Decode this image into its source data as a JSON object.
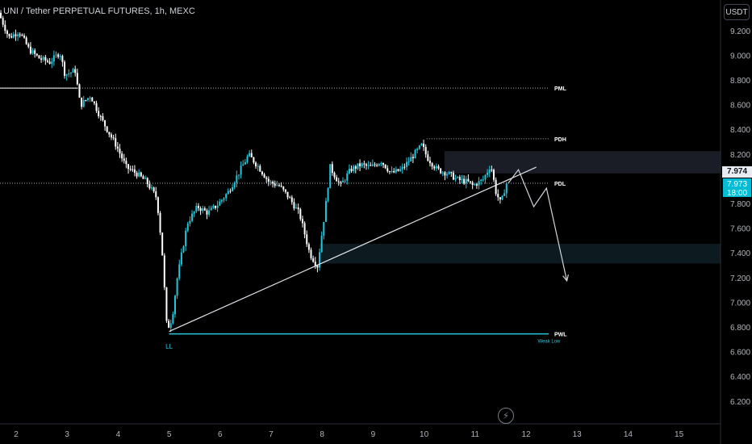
{
  "header": {
    "title": "UNI / Tether PERPETUAL FUTURES, 1h, MEXC",
    "currency_button": "USDT"
  },
  "price_tags": {
    "last": "7.974",
    "current": "7.973",
    "countdown": "18:00"
  },
  "colors": {
    "background": "#000000",
    "up_candle": "#26c6da",
    "down_candle": "#ffffff",
    "level_line": "#b2b5be",
    "pwl_line": "#26c6da",
    "accent": "#00bcd4"
  },
  "icons": {
    "replay": "lightning-icon"
  },
  "chart_data": {
    "type": "candlestick",
    "title": "UNI / Tether PERPETUAL FUTURES, 1h, MEXC",
    "xlabel": "",
    "ylabel": "",
    "x_ticks": [
      "2",
      "3",
      "4",
      "5",
      "6",
      "7",
      "8",
      "9",
      "10",
      "11",
      "12",
      "13",
      "14",
      "15"
    ],
    "y_ticks": [
      "9.200",
      "9.000",
      "8.800",
      "8.600",
      "8.400",
      "8.200",
      "8.000",
      "7.800",
      "7.600",
      "7.400",
      "7.200",
      "7.000",
      "6.800",
      "6.600",
      "6.400",
      "6.200"
    ],
    "y_range": [
      6.1,
      9.4
    ],
    "x_range": [
      1.7,
      15.75
    ],
    "grid": false,
    "price_path": [
      [
        1.7,
        9.35
      ],
      [
        1.9,
        9.15
      ],
      [
        2.1,
        9.2
      ],
      [
        2.3,
        9.05
      ],
      [
        2.5,
        8.98
      ],
      [
        2.7,
        8.95
      ],
      [
        2.9,
        9.03
      ],
      [
        3.0,
        8.85
      ],
      [
        3.2,
        8.88
      ],
      [
        3.3,
        8.6
      ],
      [
        3.5,
        8.68
      ],
      [
        3.7,
        8.5
      ],
      [
        3.9,
        8.35
      ],
      [
        4.0,
        8.28
      ],
      [
        4.2,
        8.1
      ],
      [
        4.4,
        8.05
      ],
      [
        4.6,
        7.98
      ],
      [
        4.8,
        7.85
      ],
      [
        4.9,
        7.45
      ],
      [
        5.0,
        6.78
      ],
      [
        5.1,
        6.88
      ],
      [
        5.2,
        7.2
      ],
      [
        5.4,
        7.65
      ],
      [
        5.6,
        7.78
      ],
      [
        5.8,
        7.73
      ],
      [
        6.0,
        7.8
      ],
      [
        6.2,
        7.9
      ],
      [
        6.4,
        8.05
      ],
      [
        6.6,
        8.2
      ],
      [
        6.8,
        8.1
      ],
      [
        7.0,
        7.98
      ],
      [
        7.2,
        7.95
      ],
      [
        7.4,
        7.85
      ],
      [
        7.6,
        7.72
      ],
      [
        7.8,
        7.4
      ],
      [
        7.95,
        7.3
      ],
      [
        8.1,
        7.75
      ],
      [
        8.2,
        8.1
      ],
      [
        8.4,
        7.95
      ],
      [
        8.6,
        8.08
      ],
      [
        8.8,
        8.12
      ],
      [
        9.0,
        8.1
      ],
      [
        9.2,
        8.15
      ],
      [
        9.4,
        8.05
      ],
      [
        9.6,
        8.08
      ],
      [
        9.8,
        8.18
      ],
      [
        10.0,
        8.28
      ],
      [
        10.1,
        8.18
      ],
      [
        10.3,
        8.08
      ],
      [
        10.5,
        8.05
      ],
      [
        10.7,
        8.0
      ],
      [
        10.9,
        7.98
      ],
      [
        11.0,
        7.95
      ],
      [
        11.2,
        8.0
      ],
      [
        11.35,
        8.12
      ],
      [
        11.45,
        7.9
      ],
      [
        11.55,
        7.8
      ],
      [
        11.65,
        7.97
      ]
    ],
    "levels": [
      {
        "label": "PML",
        "price": 8.74
      },
      {
        "label": "PDH",
        "price": 8.33
      },
      {
        "label": "PDL",
        "price": 7.97
      },
      {
        "label": "PWL",
        "price": 6.75
      }
    ],
    "zones": [
      {
        "from": 8.05,
        "to": 8.23
      },
      {
        "from": 7.32,
        "to": 7.48
      }
    ],
    "trendline": {
      "from": [
        5.0,
        6.77
      ],
      "to": [
        12.2,
        8.1
      ]
    },
    "projection": [
      [
        11.65,
        7.97
      ],
      [
        11.85,
        8.08
      ],
      [
        12.15,
        7.78
      ],
      [
        12.4,
        7.93
      ],
      [
        12.8,
        7.18
      ]
    ],
    "annotations": [
      {
        "text": "LL",
        "x": 5.0,
        "y": 6.63
      },
      {
        "text": "Weak Low",
        "x": 12.45,
        "y": 6.68
      }
    ]
  }
}
